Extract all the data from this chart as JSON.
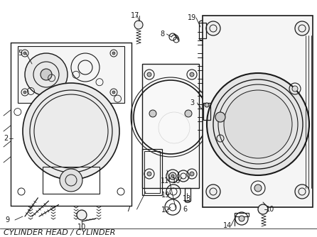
{
  "title": "CYLINDER HEAD / CYLINDER",
  "bg": "#ffffff",
  "lc": "#1a1a1a",
  "fig_width": 4.46,
  "fig_height": 3.34,
  "dpi": 100,
  "label_fontsize": 7,
  "title_fontsize": 8
}
